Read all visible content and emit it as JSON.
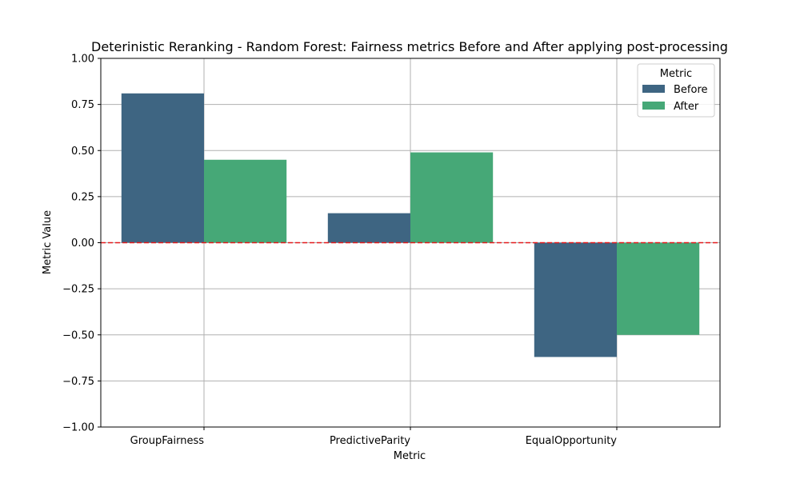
{
  "chart_data": {
    "type": "bar",
    "title": "Deterinistic Reranking - Random Forest: Fairness metrics Before and After applying post-processing",
    "xlabel": "Metric",
    "ylabel": "Metric Value",
    "categories": [
      "GroupFairness",
      "PredictiveParity",
      "EqualOpportunity"
    ],
    "series": [
      {
        "name": "Before",
        "color": "#3e6582",
        "values": [
          0.81,
          0.16,
          -0.62
        ]
      },
      {
        "name": "After",
        "color": "#46a877",
        "values": [
          0.45,
          0.49,
          -0.5
        ]
      }
    ],
    "ylim": [
      -1.0,
      1.0
    ],
    "yticks": [
      -1.0,
      -0.75,
      -0.5,
      -0.25,
      0.0,
      0.25,
      0.5,
      0.75,
      1.0
    ],
    "ytick_labels": [
      "−1.00",
      "−0.75",
      "−0.50",
      "−0.25",
      "0.00",
      "0.25",
      "0.50",
      "0.75",
      "1.00"
    ],
    "grid": true,
    "reference_line": {
      "y": 0.0,
      "color": "#e31a1c",
      "style": "dashed"
    },
    "legend": {
      "title": "Metric",
      "placement": "top-right"
    }
  }
}
